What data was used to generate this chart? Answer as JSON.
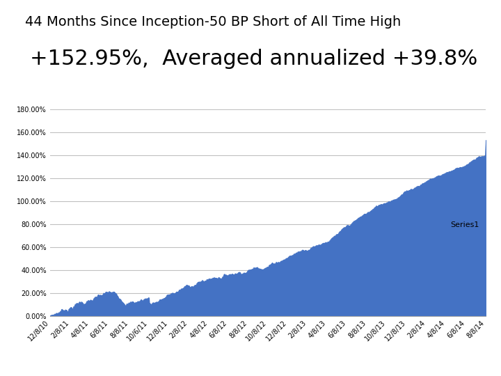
{
  "title_line1": "44 Months Since Inception-50 BP Short of All Time High",
  "title_line2": "+152.95%,  Averaged annualized +39.8%",
  "title1_fontsize": 14,
  "title2_fontsize": 22,
  "title_color": "#000000",
  "background_color": "#ffffff",
  "area_color": "#4472C4",
  "area_alpha": 1.0,
  "ylim": [
    0,
    180
  ],
  "ytick_labels": [
    "0.00%",
    "20.00%",
    "40.00%",
    "60.00%",
    "80.00%",
    "100.00%",
    "120.00%",
    "140.00%",
    "160.00%",
    "180.00%"
  ],
  "ytick_values": [
    0,
    20,
    40,
    60,
    80,
    100,
    120,
    140,
    160,
    180
  ],
  "legend_label": "Series1",
  "grid_color": "#c0c0c0",
  "grid_linewidth": 0.8,
  "tick_fontsize": 7,
  "x_dates": [
    "12/8/10",
    "2/8/11",
    "4/8/11",
    "6/8/11",
    "8/8/11",
    "10/6/11",
    "12/8/11",
    "2/8/12",
    "4/8/12",
    "6/8/12",
    "8/8/12",
    "10/8/12",
    "12/8/12",
    "2/8/13",
    "4/8/13",
    "6/8/13",
    "8/8/13",
    "10/8/13",
    "12/8/13",
    "2/8/14",
    "4/8/14",
    "6/8/14",
    "8/8/14"
  ]
}
